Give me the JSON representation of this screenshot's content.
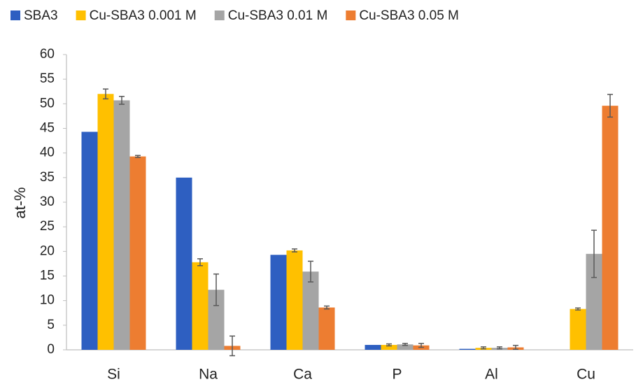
{
  "chart_data": {
    "type": "bar",
    "y_label": "at-%",
    "categories": [
      "Si",
      "Na",
      "Ca",
      "P",
      "Al",
      "Cu"
    ],
    "series": [
      {
        "name": "SBA3",
        "color": "#2e5fc1",
        "values": [
          44.3,
          35.0,
          19.3,
          1.0,
          0.2,
          0
        ]
      },
      {
        "name": "Cu-SBA3 0.001 M",
        "color": "#ffc000",
        "values": [
          52.0,
          17.8,
          20.2,
          1.0,
          0.4,
          8.3
        ],
        "errors": [
          1.0,
          0.7,
          0.3,
          0.2,
          0.2,
          0.2
        ]
      },
      {
        "name": "Cu-SBA3 0.01 M",
        "color": "#a5a5a5",
        "values": [
          50.7,
          12.2,
          15.9,
          1.1,
          0.4,
          19.5
        ],
        "errors": [
          0.8,
          3.2,
          2.1,
          0.2,
          0.2,
          4.8
        ]
      },
      {
        "name": "Cu-SBA3 0.05 M",
        "color": "#ed7d31",
        "values": [
          39.3,
          0.8,
          8.6,
          0.9,
          0.5,
          49.6
        ],
        "errors": [
          0.2,
          2.0,
          0.3,
          0.4,
          0.4,
          2.3
        ]
      }
    ],
    "ylim": [
      0,
      60
    ],
    "yticks": [
      0,
      5,
      10,
      15,
      20,
      25,
      30,
      35,
      40,
      45,
      50,
      55,
      60
    ],
    "grid": false,
    "legend": "top"
  }
}
